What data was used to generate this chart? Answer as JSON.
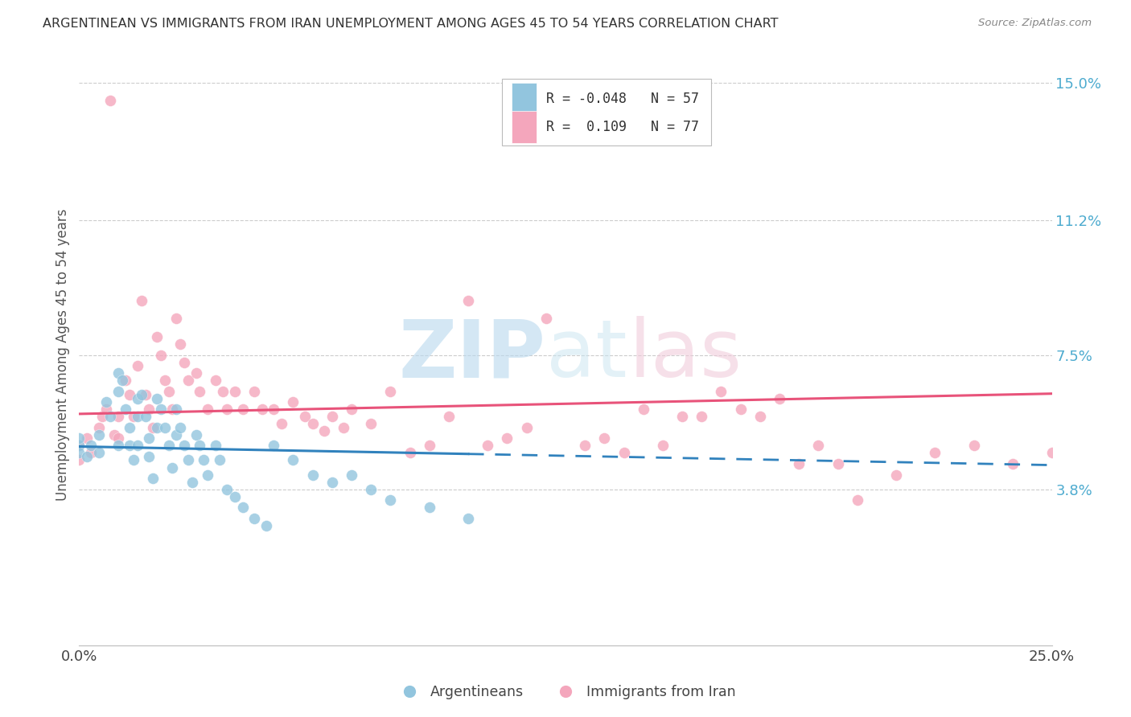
{
  "title": "ARGENTINEAN VS IMMIGRANTS FROM IRAN UNEMPLOYMENT AMONG AGES 45 TO 54 YEARS CORRELATION CHART",
  "source": "Source: ZipAtlas.com",
  "ylabel": "Unemployment Among Ages 45 to 54 years",
  "xlim": [
    0.0,
    0.25
  ],
  "ylim": [
    -0.005,
    0.155
  ],
  "yticks_right": [
    0.038,
    0.075,
    0.112,
    0.15
  ],
  "ytick_labels_right": [
    "3.8%",
    "7.5%",
    "11.2%",
    "15.0%"
  ],
  "grid_yticks": [
    0.038,
    0.075,
    0.112,
    0.15
  ],
  "color_blue": "#92c5de",
  "color_pink": "#f4a6bc",
  "color_blue_line": "#3182bd",
  "color_pink_line": "#e8537a",
  "R_blue": -0.048,
  "N_blue": 57,
  "R_pink": 0.109,
  "N_pink": 77,
  "argentineans_x": [
    0.0,
    0.0,
    0.0,
    0.002,
    0.003,
    0.005,
    0.005,
    0.007,
    0.008,
    0.01,
    0.01,
    0.01,
    0.011,
    0.012,
    0.013,
    0.013,
    0.014,
    0.015,
    0.015,
    0.015,
    0.016,
    0.017,
    0.018,
    0.018,
    0.019,
    0.02,
    0.02,
    0.021,
    0.022,
    0.023,
    0.024,
    0.025,
    0.025,
    0.026,
    0.027,
    0.028,
    0.029,
    0.03,
    0.031,
    0.032,
    0.033,
    0.035,
    0.036,
    0.038,
    0.04,
    0.042,
    0.045,
    0.048,
    0.05,
    0.055,
    0.06,
    0.065,
    0.07,
    0.075,
    0.08,
    0.09,
    0.1
  ],
  "argentineans_y": [
    0.05,
    0.048,
    0.052,
    0.047,
    0.05,
    0.048,
    0.053,
    0.062,
    0.058,
    0.07,
    0.065,
    0.05,
    0.068,
    0.06,
    0.055,
    0.05,
    0.046,
    0.063,
    0.058,
    0.05,
    0.064,
    0.058,
    0.052,
    0.047,
    0.041,
    0.063,
    0.055,
    0.06,
    0.055,
    0.05,
    0.044,
    0.06,
    0.053,
    0.055,
    0.05,
    0.046,
    0.04,
    0.053,
    0.05,
    0.046,
    0.042,
    0.05,
    0.046,
    0.038,
    0.036,
    0.033,
    0.03,
    0.028,
    0.05,
    0.046,
    0.042,
    0.04,
    0.042,
    0.038,
    0.035,
    0.033,
    0.03
  ],
  "iran_x": [
    0.0,
    0.0,
    0.002,
    0.003,
    0.005,
    0.006,
    0.007,
    0.008,
    0.009,
    0.01,
    0.01,
    0.012,
    0.013,
    0.014,
    0.015,
    0.016,
    0.017,
    0.018,
    0.019,
    0.02,
    0.021,
    0.022,
    0.023,
    0.024,
    0.025,
    0.026,
    0.027,
    0.028,
    0.03,
    0.031,
    0.033,
    0.035,
    0.037,
    0.038,
    0.04,
    0.042,
    0.045,
    0.047,
    0.05,
    0.052,
    0.055,
    0.058,
    0.06,
    0.063,
    0.065,
    0.068,
    0.07,
    0.075,
    0.08,
    0.085,
    0.09,
    0.095,
    0.1,
    0.105,
    0.11,
    0.115,
    0.12,
    0.13,
    0.135,
    0.14,
    0.145,
    0.15,
    0.155,
    0.16,
    0.165,
    0.17,
    0.175,
    0.18,
    0.185,
    0.19,
    0.195,
    0.2,
    0.21,
    0.22,
    0.23,
    0.24,
    0.25
  ],
  "iran_y": [
    0.05,
    0.046,
    0.052,
    0.048,
    0.055,
    0.058,
    0.06,
    0.145,
    0.053,
    0.058,
    0.052,
    0.068,
    0.064,
    0.058,
    0.072,
    0.09,
    0.064,
    0.06,
    0.055,
    0.08,
    0.075,
    0.068,
    0.065,
    0.06,
    0.085,
    0.078,
    0.073,
    0.068,
    0.07,
    0.065,
    0.06,
    0.068,
    0.065,
    0.06,
    0.065,
    0.06,
    0.065,
    0.06,
    0.06,
    0.056,
    0.062,
    0.058,
    0.056,
    0.054,
    0.058,
    0.055,
    0.06,
    0.056,
    0.065,
    0.048,
    0.05,
    0.058,
    0.09,
    0.05,
    0.052,
    0.055,
    0.085,
    0.05,
    0.052,
    0.048,
    0.06,
    0.05,
    0.058,
    0.058,
    0.065,
    0.06,
    0.058,
    0.063,
    0.045,
    0.05,
    0.045,
    0.035,
    0.042,
    0.048,
    0.05,
    0.045,
    0.048
  ]
}
